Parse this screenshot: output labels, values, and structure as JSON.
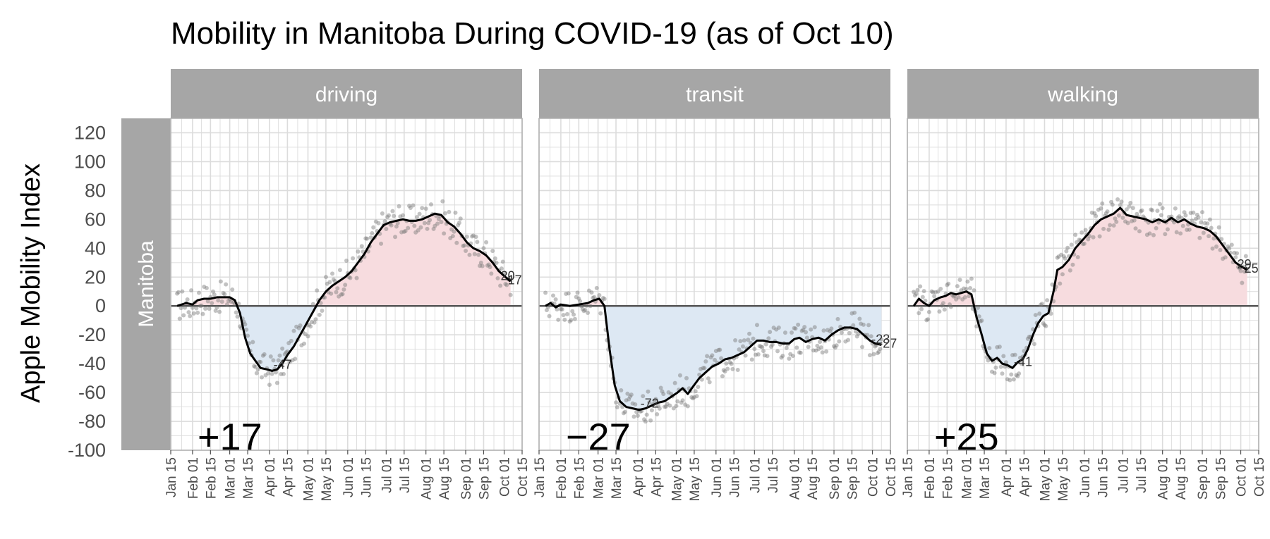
{
  "title": "Mobility in Manitoba During COVID-19 (as of Oct 10)",
  "chart_data": {
    "type": "line",
    "title": "Mobility in Manitoba During COVID-19 (as of Oct 10)",
    "ylabel": "Apple Mobility Index",
    "row_label": "Manitoba",
    "ylim": [
      -100,
      130
    ],
    "yticks": [
      -100,
      -80,
      -60,
      -40,
      -20,
      0,
      20,
      40,
      60,
      80,
      100,
      120
    ],
    "xlim": [
      "2020-01-15",
      "2020-10-15"
    ],
    "xticks": [
      "Jan 15",
      "Feb 01",
      "Feb 15",
      "Mar 01",
      "Mar 15",
      "Apr 01",
      "Apr 15",
      "May 01",
      "May 15",
      "Jun 01",
      "Jun 15",
      "Jul 01",
      "Jul 15",
      "Aug 01",
      "Aug 15",
      "Sep 01",
      "Sep 15",
      "Oct 01",
      "Oct 15"
    ],
    "xtick_dates": [
      "2020-01-15",
      "2020-02-01",
      "2020-02-15",
      "2020-03-01",
      "2020-03-15",
      "2020-04-01",
      "2020-04-15",
      "2020-05-01",
      "2020-05-15",
      "2020-06-01",
      "2020-06-15",
      "2020-07-01",
      "2020-07-15",
      "2020-08-01",
      "2020-08-15",
      "2020-09-01",
      "2020-09-15",
      "2020-10-01",
      "2020-10-15"
    ],
    "grid": true,
    "baseline": 0,
    "colors": {
      "positive_fill": "#f7dcdf",
      "negative_fill": "#dde8f3",
      "line": "#000000",
      "points": "#777777",
      "strip": "#a6a6a6",
      "grid": "#dcdcdc",
      "baseline": "#555555"
    },
    "panels": [
      {
        "name": "driving",
        "change_label": "+17",
        "min_label": "-47",
        "end_labels": [
          "20",
          "17"
        ],
        "smooth": [
          [
            "2020-01-20",
            0
          ],
          [
            "2020-01-27",
            2
          ],
          [
            "2020-02-01",
            1
          ],
          [
            "2020-02-05",
            4
          ],
          [
            "2020-02-10",
            5
          ],
          [
            "2020-02-15",
            5
          ],
          [
            "2020-02-20",
            6
          ],
          [
            "2020-02-25",
            6
          ],
          [
            "2020-03-01",
            6
          ],
          [
            "2020-03-05",
            4
          ],
          [
            "2020-03-09",
            -5
          ],
          [
            "2020-03-13",
            -22
          ],
          [
            "2020-03-17",
            -33
          ],
          [
            "2020-03-21",
            -38
          ],
          [
            "2020-03-25",
            -43
          ],
          [
            "2020-03-30",
            -44
          ],
          [
            "2020-04-03",
            -45
          ],
          [
            "2020-04-07",
            -44
          ],
          [
            "2020-04-11",
            -40
          ],
          [
            "2020-04-15",
            -34
          ],
          [
            "2020-04-20",
            -28
          ],
          [
            "2020-04-25",
            -20
          ],
          [
            "2020-04-30",
            -12
          ],
          [
            "2020-05-05",
            -4
          ],
          [
            "2020-05-10",
            4
          ],
          [
            "2020-05-15",
            10
          ],
          [
            "2020-05-20",
            14
          ],
          [
            "2020-05-25",
            17
          ],
          [
            "2020-05-30",
            20
          ],
          [
            "2020-06-04",
            24
          ],
          [
            "2020-06-09",
            30
          ],
          [
            "2020-06-14",
            36
          ],
          [
            "2020-06-19",
            44
          ],
          [
            "2020-06-24",
            50
          ],
          [
            "2020-06-29",
            56
          ],
          [
            "2020-07-04",
            58
          ],
          [
            "2020-07-09",
            59
          ],
          [
            "2020-07-14",
            60
          ],
          [
            "2020-07-19",
            59
          ],
          [
            "2020-07-24",
            59
          ],
          [
            "2020-07-29",
            60
          ],
          [
            "2020-08-03",
            62
          ],
          [
            "2020-08-08",
            64
          ],
          [
            "2020-08-13",
            63
          ],
          [
            "2020-08-18",
            58
          ],
          [
            "2020-08-23",
            55
          ],
          [
            "2020-08-28",
            50
          ],
          [
            "2020-09-02",
            44
          ],
          [
            "2020-09-07",
            40
          ],
          [
            "2020-09-12",
            38
          ],
          [
            "2020-09-17",
            35
          ],
          [
            "2020-09-22",
            30
          ],
          [
            "2020-09-27",
            24
          ],
          [
            "2020-10-02",
            20
          ],
          [
            "2020-10-06",
            17
          ]
        ]
      },
      {
        "name": "transit",
        "change_label": "−27",
        "min_label": "-72",
        "end_labels": [
          "-23",
          "-27"
        ],
        "smooth": [
          [
            "2020-01-20",
            0
          ],
          [
            "2020-01-24",
            2
          ],
          [
            "2020-01-28",
            -1
          ],
          [
            "2020-02-01",
            1
          ],
          [
            "2020-02-08",
            0
          ],
          [
            "2020-02-15",
            1
          ],
          [
            "2020-02-22",
            2
          ],
          [
            "2020-02-27",
            4
          ],
          [
            "2020-03-02",
            5
          ],
          [
            "2020-03-06",
            0
          ],
          [
            "2020-03-10",
            -30
          ],
          [
            "2020-03-14",
            -55
          ],
          [
            "2020-03-18",
            -66
          ],
          [
            "2020-03-23",
            -70
          ],
          [
            "2020-03-28",
            -71
          ],
          [
            "2020-04-02",
            -72
          ],
          [
            "2020-04-07",
            -71
          ],
          [
            "2020-04-12",
            -69
          ],
          [
            "2020-04-17",
            -67
          ],
          [
            "2020-04-22",
            -66
          ],
          [
            "2020-04-27",
            -63
          ],
          [
            "2020-05-02",
            -60
          ],
          [
            "2020-05-06",
            -57
          ],
          [
            "2020-05-10",
            -61
          ],
          [
            "2020-05-14",
            -56
          ],
          [
            "2020-05-19",
            -50
          ],
          [
            "2020-05-24",
            -46
          ],
          [
            "2020-05-29",
            -42
          ],
          [
            "2020-06-03",
            -40
          ],
          [
            "2020-06-08",
            -37
          ],
          [
            "2020-06-13",
            -36
          ],
          [
            "2020-06-18",
            -34
          ],
          [
            "2020-06-23",
            -32
          ],
          [
            "2020-06-28",
            -28
          ],
          [
            "2020-07-03",
            -24
          ],
          [
            "2020-07-08",
            -24
          ],
          [
            "2020-07-13",
            -25
          ],
          [
            "2020-07-18",
            -25
          ],
          [
            "2020-07-23",
            -26
          ],
          [
            "2020-07-28",
            -26
          ],
          [
            "2020-08-01",
            -23
          ],
          [
            "2020-08-05",
            -22
          ],
          [
            "2020-08-10",
            -25
          ],
          [
            "2020-08-15",
            -23
          ],
          [
            "2020-08-20",
            -22
          ],
          [
            "2020-08-25",
            -24
          ],
          [
            "2020-08-30",
            -20
          ],
          [
            "2020-09-04",
            -17
          ],
          [
            "2020-09-09",
            -15
          ],
          [
            "2020-09-14",
            -15
          ],
          [
            "2020-09-19",
            -16
          ],
          [
            "2020-09-24",
            -20
          ],
          [
            "2020-09-29",
            -24
          ],
          [
            "2020-10-03",
            -26
          ],
          [
            "2020-10-08",
            -27
          ]
        ]
      },
      {
        "name": "walking",
        "change_label": "+25",
        "min_label": "-41",
        "end_labels": [
          "29",
          "25"
        ],
        "smooth": [
          [
            "2020-01-20",
            0
          ],
          [
            "2020-01-24",
            5
          ],
          [
            "2020-01-28",
            2
          ],
          [
            "2020-02-01",
            0
          ],
          [
            "2020-02-05",
            4
          ],
          [
            "2020-02-10",
            6
          ],
          [
            "2020-02-14",
            7
          ],
          [
            "2020-02-18",
            9
          ],
          [
            "2020-02-22",
            8
          ],
          [
            "2020-02-26",
            9
          ],
          [
            "2020-03-01",
            10
          ],
          [
            "2020-03-05",
            8
          ],
          [
            "2020-03-09",
            -8
          ],
          [
            "2020-03-13",
            -20
          ],
          [
            "2020-03-17",
            -33
          ],
          [
            "2020-03-21",
            -38
          ],
          [
            "2020-03-25",
            -36
          ],
          [
            "2020-03-29",
            -40
          ],
          [
            "2020-04-02",
            -41
          ],
          [
            "2020-04-06",
            -43
          ],
          [
            "2020-04-10",
            -39
          ],
          [
            "2020-04-14",
            -37
          ],
          [
            "2020-04-18",
            -30
          ],
          [
            "2020-04-22",
            -20
          ],
          [
            "2020-04-26",
            -12
          ],
          [
            "2020-04-30",
            -7
          ],
          [
            "2020-05-04",
            -5
          ],
          [
            "2020-05-08",
            10
          ],
          [
            "2020-05-11",
            25
          ],
          [
            "2020-05-15",
            27
          ],
          [
            "2020-05-20",
            32
          ],
          [
            "2020-05-25",
            40
          ],
          [
            "2020-05-30",
            45
          ],
          [
            "2020-06-04",
            50
          ],
          [
            "2020-06-09",
            56
          ],
          [
            "2020-06-14",
            60
          ],
          [
            "2020-06-19",
            62
          ],
          [
            "2020-06-24",
            64
          ],
          [
            "2020-06-29",
            68
          ],
          [
            "2020-07-04",
            63
          ],
          [
            "2020-07-09",
            62
          ],
          [
            "2020-07-14",
            61
          ],
          [
            "2020-07-19",
            60
          ],
          [
            "2020-07-24",
            58
          ],
          [
            "2020-07-29",
            60
          ],
          [
            "2020-08-03",
            58
          ],
          [
            "2020-08-08",
            61
          ],
          [
            "2020-08-13",
            58
          ],
          [
            "2020-08-18",
            60
          ],
          [
            "2020-08-23",
            57
          ],
          [
            "2020-08-28",
            55
          ],
          [
            "2020-09-02",
            54
          ],
          [
            "2020-09-07",
            52
          ],
          [
            "2020-09-12",
            48
          ],
          [
            "2020-09-17",
            42
          ],
          [
            "2020-09-22",
            36
          ],
          [
            "2020-09-27",
            30
          ],
          [
            "2020-10-02",
            27
          ],
          [
            "2020-10-06",
            25
          ]
        ]
      }
    ]
  }
}
